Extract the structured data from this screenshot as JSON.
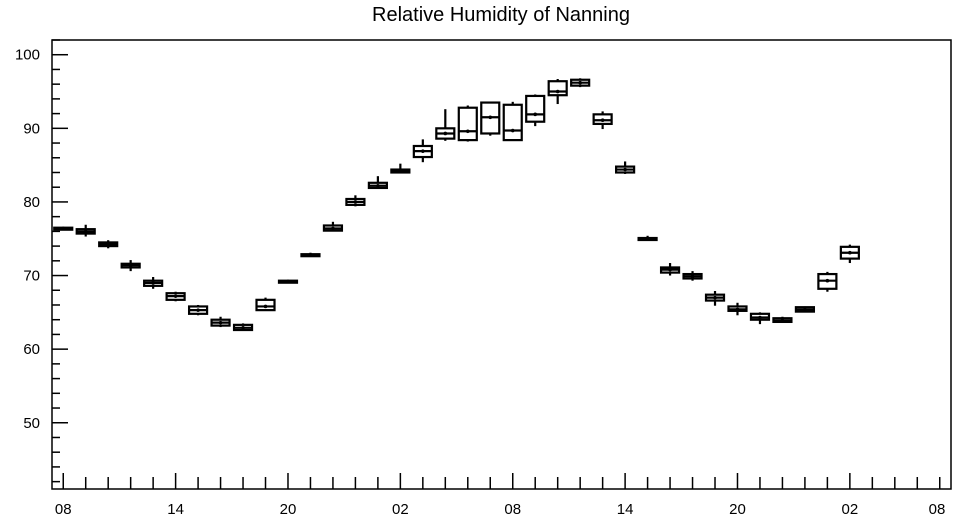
{
  "chart_data": {
    "type": "box",
    "title": "Relative Humidity of Nanning",
    "xlabel": "",
    "ylabel": "",
    "ylim": [
      41,
      102
    ],
    "xlim": [
      -0.5,
      39.5
    ],
    "y_ticks": [
      50,
      60,
      70,
      80,
      90,
      100
    ],
    "x_tick_labels": [
      {
        "pos": 0,
        "label": "08"
      },
      {
        "pos": 5,
        "label": "14"
      },
      {
        "pos": 10,
        "label": "20"
      },
      {
        "pos": 15,
        "label": "02"
      },
      {
        "pos": 20,
        "label": "08"
      },
      {
        "pos": 25,
        "label": "14"
      },
      {
        "pos": 30,
        "label": "20"
      },
      {
        "pos": 35,
        "label": "02"
      },
      {
        "pos": 40,
        "label": "08"
      }
    ],
    "grid": false,
    "boxes": [
      {
        "x": 0,
        "min": 76.2,
        "q1": 76.3,
        "median": 76.4,
        "q3": 76.5,
        "max": 76.6
      },
      {
        "x": 1,
        "min": 75.3,
        "q1": 75.7,
        "median": 76.0,
        "q3": 76.3,
        "max": 76.9
      },
      {
        "x": 2,
        "min": 73.7,
        "q1": 74.0,
        "median": 74.3,
        "q3": 74.5,
        "max": 74.8
      },
      {
        "x": 3,
        "min": 70.6,
        "q1": 71.1,
        "median": 71.4,
        "q3": 71.6,
        "max": 72.1
      },
      {
        "x": 4,
        "min": 68.2,
        "q1": 68.6,
        "median": 69.0,
        "q3": 69.3,
        "max": 69.8
      },
      {
        "x": 5,
        "min": 66.5,
        "q1": 66.7,
        "median": 67.2,
        "q3": 67.6,
        "max": 67.8
      },
      {
        "x": 6,
        "min": 64.6,
        "q1": 64.8,
        "median": 65.3,
        "q3": 65.8,
        "max": 66.0
      },
      {
        "x": 7,
        "min": 63.0,
        "q1": 63.2,
        "median": 63.6,
        "q3": 64.0,
        "max": 64.4
      },
      {
        "x": 8,
        "min": 62.6,
        "q1": 62.6,
        "median": 62.9,
        "q3": 63.3,
        "max": 63.5
      },
      {
        "x": 9,
        "min": 65.2,
        "q1": 65.3,
        "median": 65.8,
        "q3": 66.7,
        "max": 67.0
      },
      {
        "x": 10,
        "min": 69.0,
        "q1": 69.1,
        "median": 69.2,
        "q3": 69.3,
        "max": 69.4
      },
      {
        "x": 11,
        "min": 72.6,
        "q1": 72.7,
        "median": 72.8,
        "q3": 72.9,
        "max": 73.1
      },
      {
        "x": 12,
        "min": 76.0,
        "q1": 76.1,
        "median": 76.4,
        "q3": 76.8,
        "max": 77.3
      },
      {
        "x": 13,
        "min": 79.4,
        "q1": 79.6,
        "median": 80.0,
        "q3": 80.4,
        "max": 80.9
      },
      {
        "x": 14,
        "min": 81.8,
        "q1": 81.9,
        "median": 82.2,
        "q3": 82.6,
        "max": 83.5
      },
      {
        "x": 15,
        "min": 83.9,
        "q1": 84.0,
        "median": 84.2,
        "q3": 84.4,
        "max": 85.2
      },
      {
        "x": 16,
        "min": 85.4,
        "q1": 86.1,
        "median": 86.9,
        "q3": 87.6,
        "max": 88.5
      },
      {
        "x": 17,
        "min": 88.3,
        "q1": 88.6,
        "median": 89.3,
        "q3": 90.0,
        "max": 92.6
      },
      {
        "x": 18,
        "min": 88.2,
        "q1": 88.4,
        "median": 89.6,
        "q3": 92.8,
        "max": 93.1
      },
      {
        "x": 19,
        "min": 89.0,
        "q1": 89.3,
        "median": 91.5,
        "q3": 93.5,
        "max": 93.6
      },
      {
        "x": 20,
        "min": 88.3,
        "q1": 88.4,
        "median": 89.7,
        "q3": 93.2,
        "max": 93.6
      },
      {
        "x": 21,
        "min": 90.3,
        "q1": 90.9,
        "median": 91.9,
        "q3": 94.4,
        "max": 94.6
      },
      {
        "x": 22,
        "min": 93.3,
        "q1": 94.5,
        "median": 95.0,
        "q3": 96.4,
        "max": 96.7
      },
      {
        "x": 23,
        "min": 95.6,
        "q1": 95.8,
        "median": 96.2,
        "q3": 96.6,
        "max": 96.8
      },
      {
        "x": 24,
        "min": 89.9,
        "q1": 90.6,
        "median": 91.1,
        "q3": 91.9,
        "max": 92.3
      },
      {
        "x": 25,
        "min": 83.8,
        "q1": 84.0,
        "median": 84.4,
        "q3": 84.8,
        "max": 85.5
      },
      {
        "x": 26,
        "min": 74.7,
        "q1": 74.9,
        "median": 75.0,
        "q3": 75.1,
        "max": 75.4
      },
      {
        "x": 27,
        "min": 70.0,
        "q1": 70.4,
        "median": 70.8,
        "q3": 71.1,
        "max": 71.7
      },
      {
        "x": 28,
        "min": 69.3,
        "q1": 69.6,
        "median": 69.9,
        "q3": 70.2,
        "max": 70.6
      },
      {
        "x": 29,
        "min": 65.9,
        "q1": 66.6,
        "median": 67.0,
        "q3": 67.4,
        "max": 67.9
      },
      {
        "x": 30,
        "min": 64.6,
        "q1": 65.2,
        "median": 65.4,
        "q3": 65.8,
        "max": 66.3
      },
      {
        "x": 31,
        "min": 63.4,
        "q1": 64.0,
        "median": 64.3,
        "q3": 64.8,
        "max": 65.0
      },
      {
        "x": 32,
        "min": 63.6,
        "q1": 63.7,
        "median": 63.9,
        "q3": 64.2,
        "max": 64.4
      },
      {
        "x": 33,
        "min": 65.0,
        "q1": 65.1,
        "median": 65.4,
        "q3": 65.7,
        "max": 65.8
      },
      {
        "x": 34,
        "min": 67.8,
        "q1": 68.2,
        "median": 69.3,
        "q3": 70.2,
        "max": 70.5
      },
      {
        "x": 35,
        "min": 71.7,
        "q1": 72.3,
        "median": 73.1,
        "q3": 73.9,
        "max": 74.2
      }
    ]
  }
}
